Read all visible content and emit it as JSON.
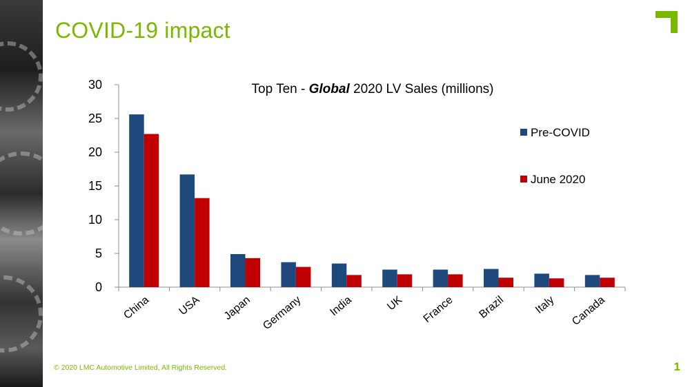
{
  "slide": {
    "title": "COVID-19 impact",
    "footer": "© 2020 LMC Automotive Limited, All Rights Reserved.",
    "page_number": "1",
    "accent_color": "#7ab800"
  },
  "chart_data": {
    "type": "bar",
    "title": "Top Ten - Global 2020 LV Sales (millions)",
    "title_parts": {
      "prefix": "Top Ten - ",
      "emphasis": "Global",
      "suffix": " 2020 LV Sales (millions)"
    },
    "categories": [
      "China",
      "USA",
      "Japan",
      "Germany",
      "India",
      "UK",
      "France",
      "Brazil",
      "Italy",
      "Canada"
    ],
    "series": [
      {
        "name": "Pre-COVID",
        "color": "#1f497d",
        "values": [
          25.6,
          16.7,
          4.9,
          3.7,
          3.5,
          2.6,
          2.6,
          2.7,
          2.0,
          1.8
        ]
      },
      {
        "name": "June 2020",
        "color": "#c00000",
        "values": [
          22.7,
          13.2,
          4.3,
          3.0,
          1.8,
          1.9,
          1.9,
          1.4,
          1.3,
          1.4
        ]
      }
    ],
    "ylim": [
      0,
      30
    ],
    "yticks": [
      0,
      5,
      10,
      15,
      20,
      25,
      30
    ],
    "xlabel": "",
    "ylabel": "",
    "grid": false,
    "legend_position": "right"
  }
}
